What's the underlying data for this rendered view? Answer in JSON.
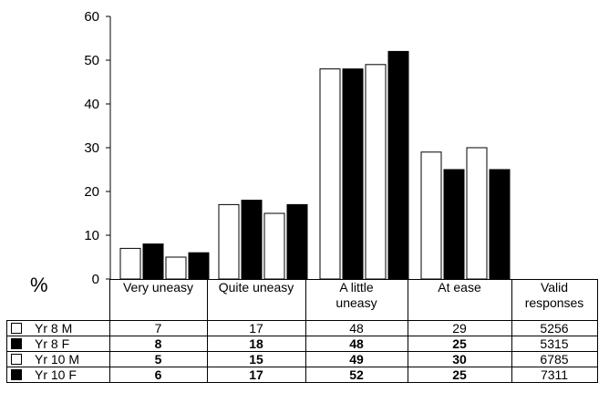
{
  "chart_data": {
    "type": "bar",
    "ylabel": "%",
    "ylim": [
      0,
      60
    ],
    "yticks": [
      0,
      10,
      20,
      30,
      40,
      50,
      60
    ],
    "categories": [
      "Very uneasy",
      "Quite uneasy",
      "A little uneasy",
      "At ease"
    ],
    "extra_column": "Valid responses",
    "series": [
      {
        "name": "Yr 8 M",
        "values": [
          7,
          17,
          48,
          29
        ],
        "valid": "5256",
        "color": "#ffffff",
        "bold": false
      },
      {
        "name": "Yr 8 F",
        "values": [
          8,
          18,
          48,
          25
        ],
        "valid": "5315",
        "color": "#000000",
        "bold": true
      },
      {
        "name": "Yr 10 M",
        "values": [
          5,
          15,
          49,
          30
        ],
        "valid": "6785",
        "color": "#ffffff",
        "bold": true
      },
      {
        "name": "Yr 10 F",
        "values": [
          6,
          17,
          52,
          25
        ],
        "valid": "7311",
        "color": "#000000",
        "bold": true
      }
    ],
    "bar_heights_note": "",
    "grid": false
  }
}
